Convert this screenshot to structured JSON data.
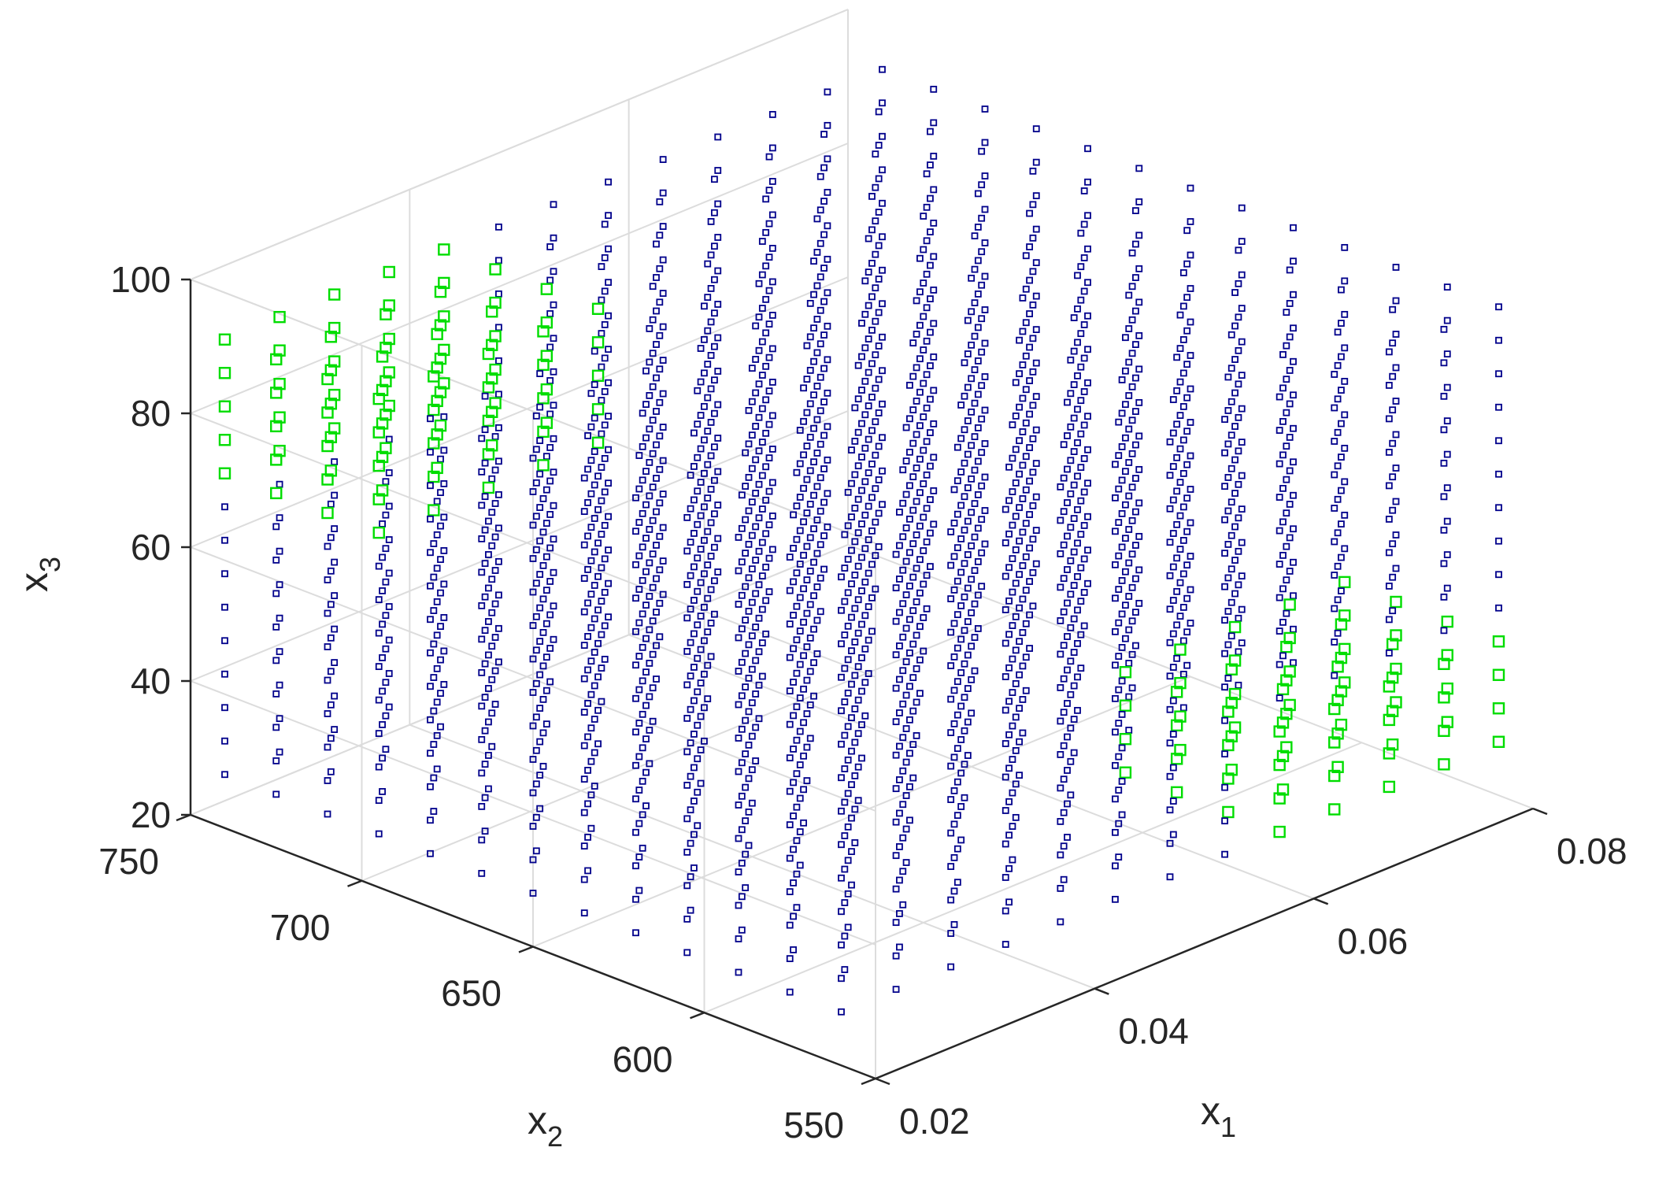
{
  "chart_data": {
    "type": "scatter3d",
    "title": "",
    "axes": {
      "x1": {
        "label": "x",
        "subscript": "1",
        "ticks": [
          "0.02",
          "0.04",
          "0.06",
          "0.08"
        ],
        "range": [
          0.02,
          0.08
        ]
      },
      "x2": {
        "label": "x",
        "subscript": "2",
        "ticks": [
          "550",
          "600",
          "650",
          "700",
          "750"
        ],
        "range": [
          550,
          750
        ]
      },
      "x3": {
        "label": "x",
        "subscript": "3",
        "ticks": [
          "20",
          "40",
          "60",
          "80",
          "100"
        ],
        "range": [
          20,
          100
        ]
      }
    },
    "grid": true,
    "box": true,
    "view": "isometric 3-D",
    "grid_levels": {
      "x1": [
        0.02,
        0.025,
        0.03,
        0.035,
        0.04,
        0.045,
        0.05,
        0.055,
        0.06,
        0.065,
        0.07,
        0.075,
        0.08
      ],
      "x2": [
        560,
        575,
        590,
        605,
        620,
        635,
        650,
        665,
        680,
        695,
        710,
        725,
        740
      ],
      "x3": [
        28,
        33,
        38,
        43,
        48,
        53,
        58,
        63,
        68,
        73,
        78,
        83,
        88,
        93
      ]
    },
    "series": [
      {
        "marker": "square",
        "marker_size": "small",
        "color": "#00008b",
        "points": "all grid combinations of grid_levels not listed in the green series"
      },
      {
        "marker": "square",
        "marker_size": "large",
        "color": "#00dd00",
        "clusters": [
          {
            "x1": [
              0.02,
              0.025,
              0.03,
              0.035,
              0.04
            ],
            "x2": [
              695,
              710,
              725,
              740
            ],
            "x3": [
              73,
              78,
              83,
              88,
              93
            ]
          },
          {
            "x1": [
              0.06,
              0.065,
              0.07,
              0.075,
              0.08
            ],
            "x2": [
              560,
              575,
              590,
              605
            ],
            "x3": [
              28,
              33,
              38,
              43
            ]
          }
        ]
      }
    ]
  }
}
